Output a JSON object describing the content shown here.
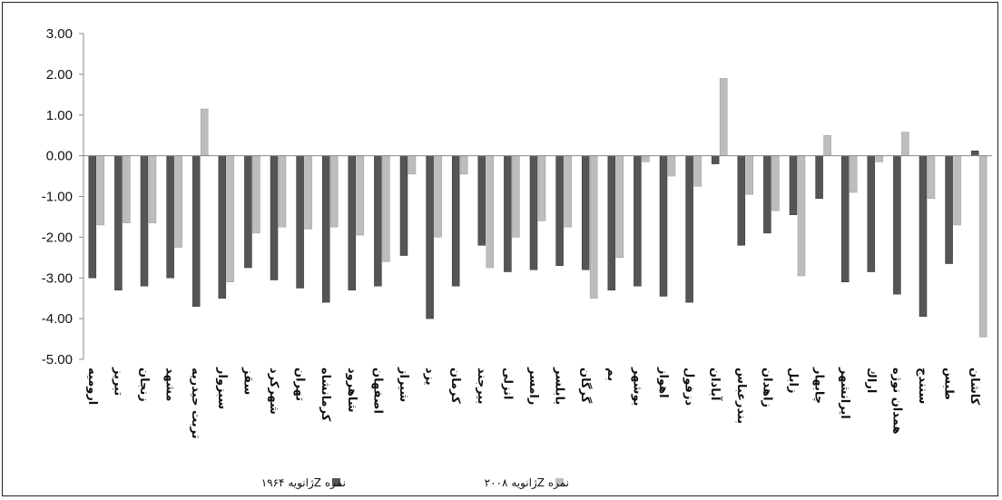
{
  "chart_data": {
    "type": "bar",
    "categories": [
      "اروميه",
      "تبريز",
      "زنجان",
      "مشهد",
      "تربت حيدريه",
      "سبزوار",
      "سقز",
      "شهركرد",
      "تهران",
      "كرمانشاه",
      "شاهرود",
      "اصفهان",
      "شيراز",
      "يزد",
      "كرمان",
      "بيرجند",
      "انزلى",
      "رامسر",
      "بابلسر",
      "گرگان",
      "بم",
      "بوشهر",
      "اهواز",
      "دزفول",
      "آبادان",
      "بندرعباس",
      "زاهدان",
      "زابل",
      "چابهار",
      "ايرانشهر",
      "اراك",
      "همدان نوژه",
      "سنندج",
      "طبس",
      "كاشان"
    ],
    "series": [
      {
        "name": "نمره Zژانویه ۱۹۶۴",
        "color": "#555555",
        "values": [
          -3.0,
          -3.3,
          -3.2,
          -3.0,
          -3.7,
          -3.5,
          -2.75,
          -3.05,
          -3.25,
          -3.6,
          -3.3,
          -3.2,
          -2.45,
          -4.0,
          -3.2,
          -2.2,
          -2.85,
          -2.8,
          -2.7,
          -2.8,
          -3.3,
          -3.2,
          -3.45,
          -3.6,
          -0.2,
          -2.2,
          -1.9,
          -1.45,
          -1.05,
          -3.1,
          -2.85,
          -3.4,
          -3.95,
          -2.65,
          0.12
        ]
      },
      {
        "name": "نمره Zژانویه ۲۰۰۸",
        "color": "#bdbdbd",
        "values": [
          -1.7,
          -1.65,
          -1.65,
          -2.25,
          1.15,
          -3.1,
          -1.9,
          -1.75,
          -1.8,
          -1.75,
          -1.95,
          -2.6,
          -0.45,
          -2.0,
          -0.45,
          -2.75,
          -2.0,
          -1.6,
          -1.75,
          -3.5,
          -2.5,
          -0.15,
          -0.5,
          -0.75,
          1.9,
          -0.95,
          -1.35,
          -2.95,
          0.5,
          -0.9,
          -0.15,
          0.58,
          -1.05,
          -1.7,
          -4.45
        ]
      }
    ],
    "yticks": [
      "3.00",
      "2.00",
      "1.00",
      "0.00",
      "-1.00",
      "-2.00",
      "-3.00",
      "-4.00",
      "-5.00"
    ],
    "ylim": [
      -5,
      3
    ],
    "legend_position": "bottom-center",
    "grid": false
  }
}
